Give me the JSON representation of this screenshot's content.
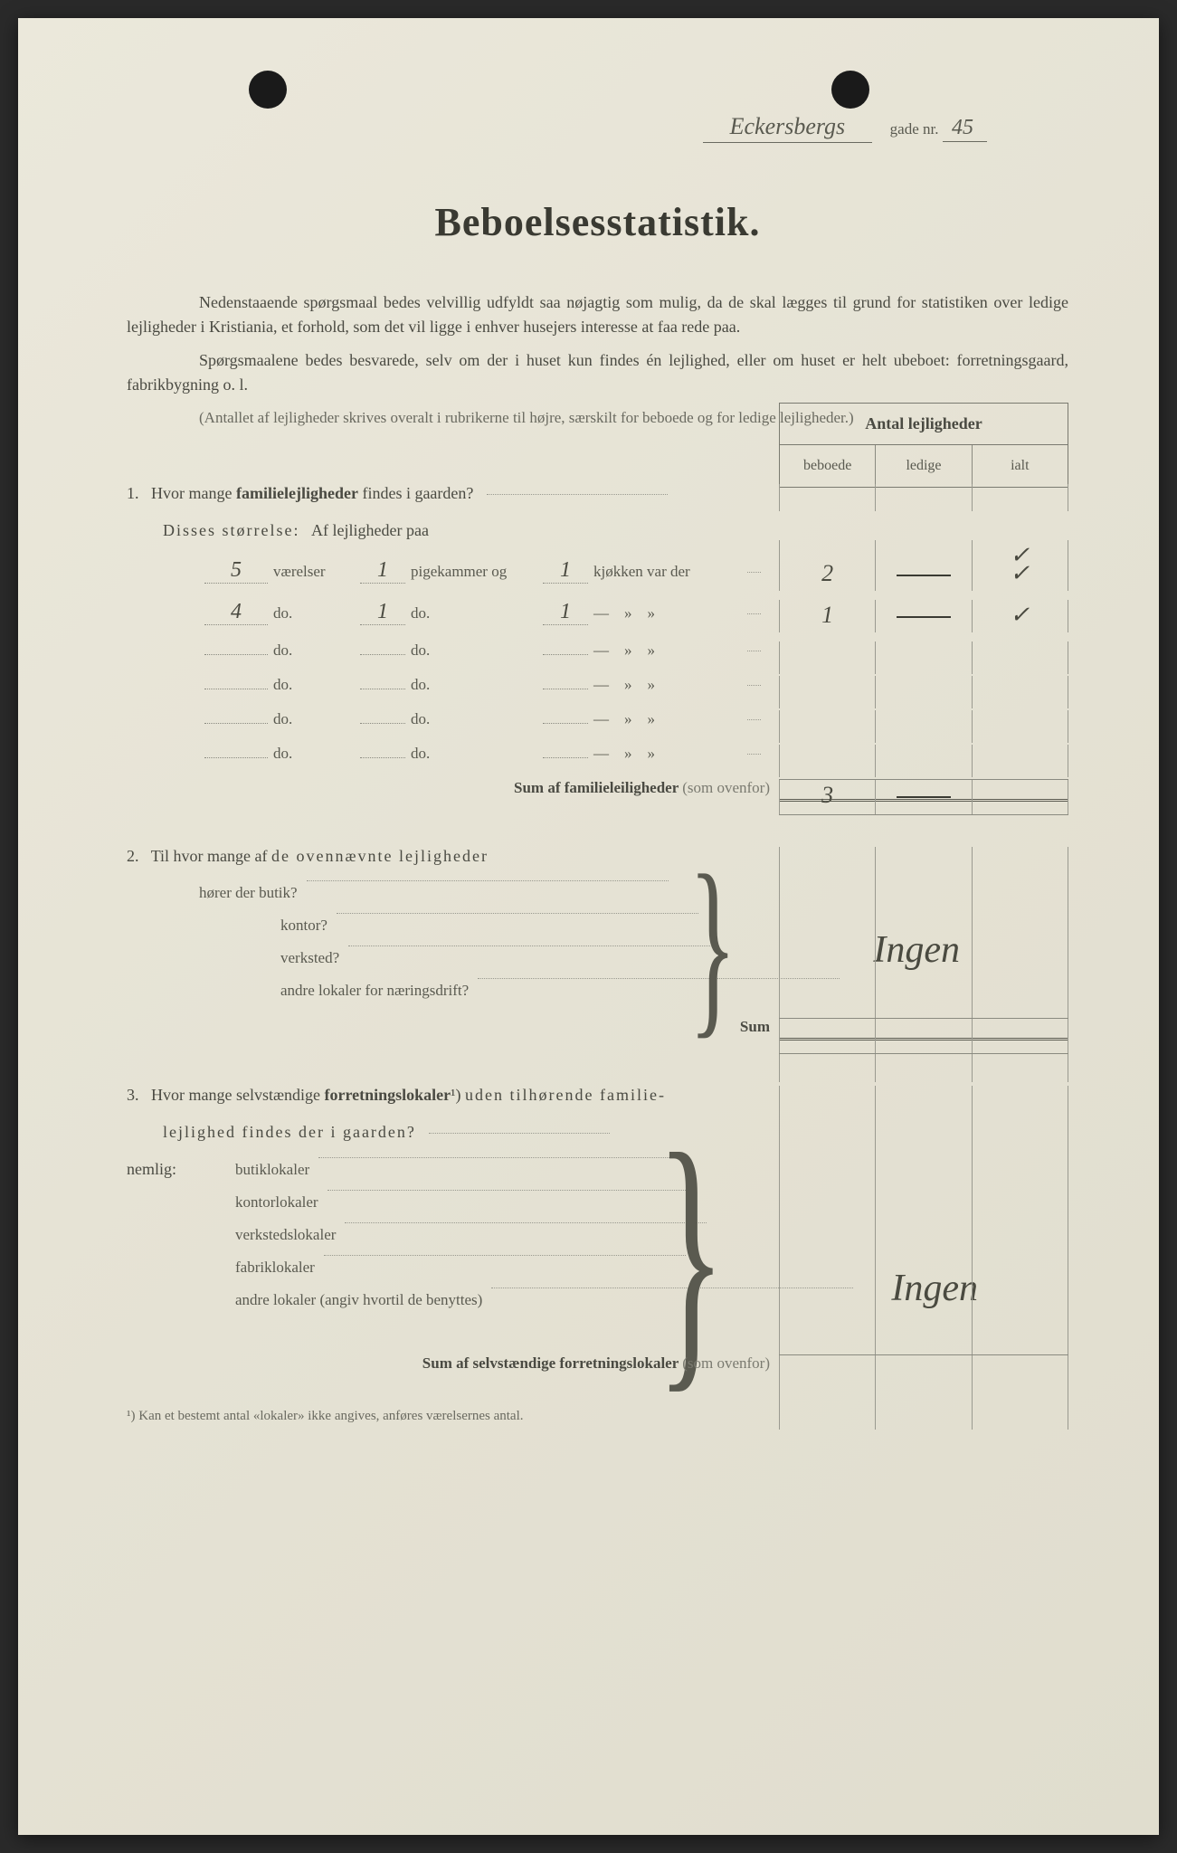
{
  "header": {
    "street_script": "Eckersbergs",
    "gade_label": "gade nr.",
    "number": "45"
  },
  "title": "Beboelsesstatistik.",
  "intro": {
    "p1": "Nedenstaaende spørgsmaal bedes velvillig udfyldt saa nøjagtig som mulig, da de skal lægges til grund for statistiken over ledige lejligheder i Kristiania, et forhold, som det vil ligge i enhver husejers interesse at faa rede paa.",
    "p2": "Spørgsmaalene bedes besvarede, selv om der i huset kun findes én lejlighed, eller om huset er helt ubeboet: forretningsgaard, fabrikbygning o. l.",
    "p3": "(Antallet af lejligheder skrives overalt i rubrikerne til højre, særskilt for beboede og for ledige lejligheder.)"
  },
  "table_header": {
    "title": "Antal lejligheder",
    "col1": "beboede",
    "col2": "ledige",
    "col3": "ialt"
  },
  "q1": {
    "num": "1.",
    "text": "Hvor mange familielejligheder findes i gaarden?",
    "size_label": "Disses størrelse:",
    "af_label": "Af lejligheder paa",
    "rows": [
      {
        "vaer": "5",
        "vaer_label": "værelser",
        "pig": "1",
        "pig_label": "pigekammer og",
        "kjok": "1",
        "kjok_label": "kjøkken var der",
        "beb": "2",
        "led": "—",
        "ialt": "✓"
      },
      {
        "vaer": "4",
        "vaer_label": "do.",
        "pig": "1",
        "pig_label": "do.",
        "kjok": "1",
        "kjok_label": "—    »    »",
        "beb": "1",
        "led": "—",
        "ialt": "✓"
      },
      {
        "vaer": "",
        "vaer_label": "do.",
        "pig": "",
        "pig_label": "do.",
        "kjok": "",
        "kjok_label": "—    »    »",
        "beb": "",
        "led": "",
        "ialt": ""
      },
      {
        "vaer": "",
        "vaer_label": "do.",
        "pig": "",
        "pig_label": "do.",
        "kjok": "",
        "kjok_label": "—    »    »",
        "beb": "",
        "led": "",
        "ialt": ""
      },
      {
        "vaer": "",
        "vaer_label": "do.",
        "pig": "",
        "pig_label": "do.",
        "kjok": "",
        "kjok_label": "—    »    »",
        "beb": "",
        "led": "",
        "ialt": ""
      },
      {
        "vaer": "",
        "vaer_label": "do.",
        "pig": "",
        "pig_label": "do.",
        "kjok": "",
        "kjok_label": "—    »    »",
        "beb": "",
        "led": "",
        "ialt": ""
      }
    ],
    "sum_label": "Sum af familieleiligheder",
    "sum_note": "(som ovenfor)",
    "sum_beb": "3",
    "sum_led": "——"
  },
  "q2": {
    "num": "2.",
    "text": "Til hvor mange af de ovennævnte lejligheder",
    "items": [
      "hører der butik?",
      "kontor?",
      "verksted?",
      "andre lokaler for næringsdrift?"
    ],
    "answer": "Ingen",
    "sum": "Sum"
  },
  "q3": {
    "num": "3.",
    "text1": "Hvor mange selvstændige forretningslokaler¹) uden tilhørende familie-",
    "text2": "lejlighed findes der i gaarden?",
    "nemlig": "nemlig:",
    "items": [
      "butiklokaler",
      "kontorlokaler",
      "verkstedslokaler",
      "fabriklokaler",
      "andre lokaler (angiv hvortil de benyttes)"
    ],
    "answer": "Ingen",
    "sum_label": "Sum af selvstændige forretningslokaler",
    "sum_note": "(som ovenfor)"
  },
  "footnote": "¹)  Kan et bestemt antal «lokaler» ikke angives, anføres værelsernes antal."
}
